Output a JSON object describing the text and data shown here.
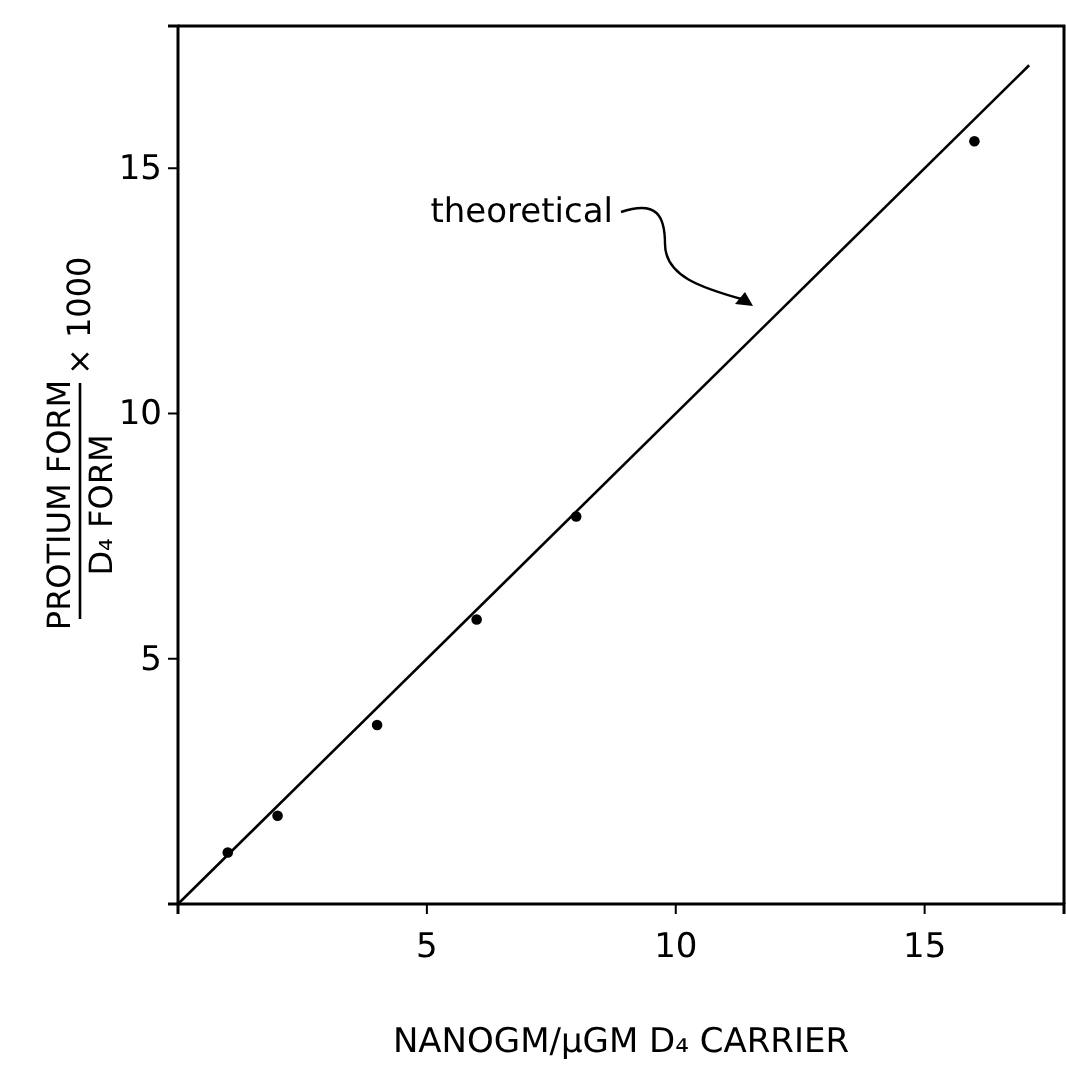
{
  "chart_data": {
    "type": "scatter",
    "xlabel": "NANOGM/µGM D₄ CARRIER",
    "ylabel": "PROTIUM FORM  D₄ FORM  × 1000",
    "xlim": [
      0,
      17.8
    ],
    "ylim": [
      0,
      17.9
    ],
    "xticks": [
      5,
      10,
      15
    ],
    "yticks": [
      5,
      10,
      15
    ],
    "grid": false,
    "series": [
      {
        "color": "#000000",
        "marker": "circle",
        "x": [
          1.0,
          2.0,
          4.0,
          6.0,
          8.0,
          16.0
        ],
        "values": [
          1.05,
          1.8,
          3.65,
          5.8,
          7.9,
          15.55
        ]
      },
      {
        "type": "line",
        "color": "#000000",
        "line_style": "solid",
        "x": [
          0,
          17.1
        ],
        "values": [
          0,
          17.1
        ]
      }
    ],
    "annotations": [
      "theoretical"
    ]
  }
}
